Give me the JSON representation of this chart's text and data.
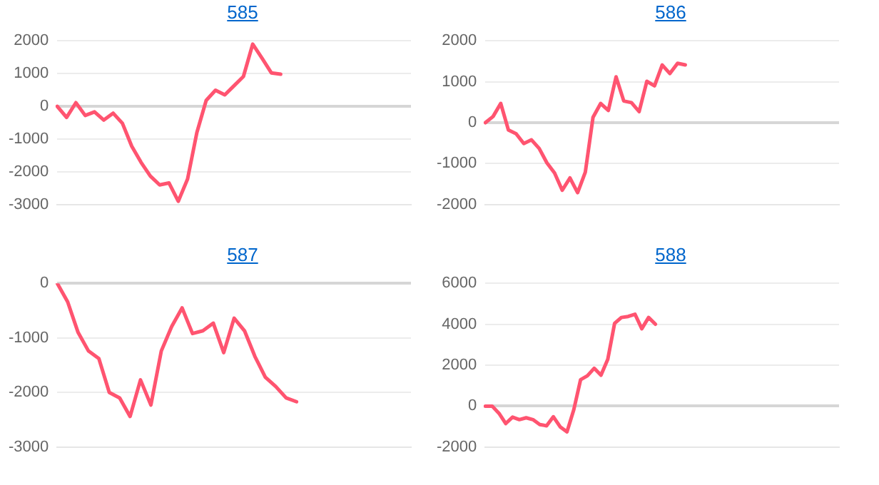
{
  "chart_data": [
    {
      "type": "line",
      "title": "585",
      "categories": [
        null,
        null,
        null,
        null,
        null,
        null,
        null,
        null,
        null,
        null,
        null,
        null,
        null,
        null,
        null,
        null,
        null,
        null,
        null,
        null,
        null,
        null,
        null,
        null,
        null,
        null,
        null,
        null,
        null,
        null,
        null,
        null,
        null,
        null,
        null,
        null,
        null,
        null,
        null
      ],
      "series": [
        {
          "color": "#ff5470",
          "values": [
            0,
            -340,
            110,
            -280,
            -170,
            -420,
            -210,
            -520,
            -1220,
            -1710,
            -2130,
            -2400,
            -2340,
            -2900,
            -2220,
            -800,
            180,
            490,
            350,
            630,
            910,
            1900,
            1470,
            1020,
            980,
            null,
            null,
            null,
            null,
            null,
            null,
            null,
            null,
            null,
            null,
            null,
            null,
            null,
            null
          ]
        }
      ],
      "ylim": [
        -3000,
        2000
      ],
      "yticks": [
        -3000,
        -2000,
        -1000,
        0,
        1000,
        2000
      ],
      "grid": "y",
      "tick_labels": "y",
      "legend": false,
      "marker": "none"
    },
    {
      "type": "line",
      "title": "586",
      "categories": [
        null,
        null,
        null,
        null,
        null,
        null,
        null,
        null,
        null,
        null,
        null,
        null,
        null,
        null,
        null,
        null,
        null,
        null,
        null,
        null,
        null,
        null,
        null,
        null,
        null,
        null,
        null,
        null,
        null,
        null,
        null,
        null,
        null,
        null,
        null,
        null,
        null,
        null,
        null,
        null,
        null,
        null,
        null,
        null,
        null,
        null,
        null
      ],
      "series": [
        {
          "color": "#ff5470",
          "values": [
            0,
            150,
            470,
            -180,
            -270,
            -510,
            -420,
            -630,
            -980,
            -1230,
            -1650,
            -1350,
            -1710,
            -1210,
            130,
            470,
            300,
            1120,
            530,
            490,
            270,
            1010,
            900,
            1410,
            1200,
            1450,
            1410,
            null,
            null,
            null,
            null,
            null,
            null,
            null,
            null,
            null,
            null,
            null,
            null,
            null,
            null,
            null,
            null,
            null,
            null,
            null,
            null
          ]
        }
      ],
      "ylim": [
        -2000,
        2000
      ],
      "yticks": [
        -2000,
        -1000,
        0,
        1000,
        2000
      ],
      "grid": "y",
      "tick_labels": "y",
      "legend": false,
      "marker": "none"
    },
    {
      "type": "line",
      "title": "587",
      "categories": [
        null,
        null,
        null,
        null,
        null,
        null,
        null,
        null,
        null,
        null,
        null,
        null,
        null,
        null,
        null,
        null,
        null,
        null,
        null,
        null,
        null,
        null,
        null,
        null,
        null,
        null,
        null,
        null,
        null,
        null,
        null,
        null,
        null,
        null,
        null
      ],
      "series": [
        {
          "color": "#ff5470",
          "values": [
            0,
            -340,
            -900,
            -1240,
            -1380,
            -2000,
            -2100,
            -2440,
            -1770,
            -2230,
            -1240,
            -790,
            -450,
            -920,
            -870,
            -730,
            -1270,
            -640,
            -870,
            -1340,
            -1720,
            -1890,
            -2100,
            -2170,
            null,
            null,
            null,
            null,
            null,
            null,
            null,
            null,
            null,
            null,
            null
          ]
        }
      ],
      "ylim": [
        -3000,
        0
      ],
      "yticks": [
        -3000,
        -2000,
        -1000,
        0
      ],
      "grid": "y",
      "tick_labels": "y",
      "legend": false,
      "marker": "none"
    },
    {
      "type": "line",
      "title": "588",
      "categories": [
        null,
        null,
        null,
        null,
        null,
        null,
        null,
        null,
        null,
        null,
        null,
        null,
        null,
        null,
        null,
        null,
        null,
        null,
        null,
        null,
        null,
        null,
        null,
        null,
        null,
        null,
        null,
        null,
        null,
        null,
        null,
        null,
        null,
        null,
        null,
        null,
        null,
        null,
        null,
        null,
        null,
        null,
        null,
        null,
        null,
        null,
        null,
        null,
        null,
        null,
        null,
        null,
        null
      ],
      "series": [
        {
          "color": "#ff5470",
          "values": [
            0,
            0,
            -350,
            -850,
            -540,
            -660,
            -570,
            -660,
            -900,
            -960,
            -520,
            -1010,
            -1260,
            -180,
            1290,
            1480,
            1850,
            1510,
            2290,
            4040,
            4330,
            4380,
            4490,
            3780,
            4330,
            4000,
            null,
            null,
            null,
            null,
            null,
            null,
            null,
            null,
            null,
            null,
            null,
            null,
            null,
            null,
            null,
            null,
            null,
            null,
            null,
            null,
            null,
            null,
            null,
            null,
            null,
            null,
            null
          ]
        }
      ],
      "ylim": [
        -2000,
        6000
      ],
      "yticks": [
        -2000,
        0,
        2000,
        4000,
        6000
      ],
      "grid": "y",
      "tick_labels": "y",
      "legend": false,
      "marker": "none"
    }
  ]
}
